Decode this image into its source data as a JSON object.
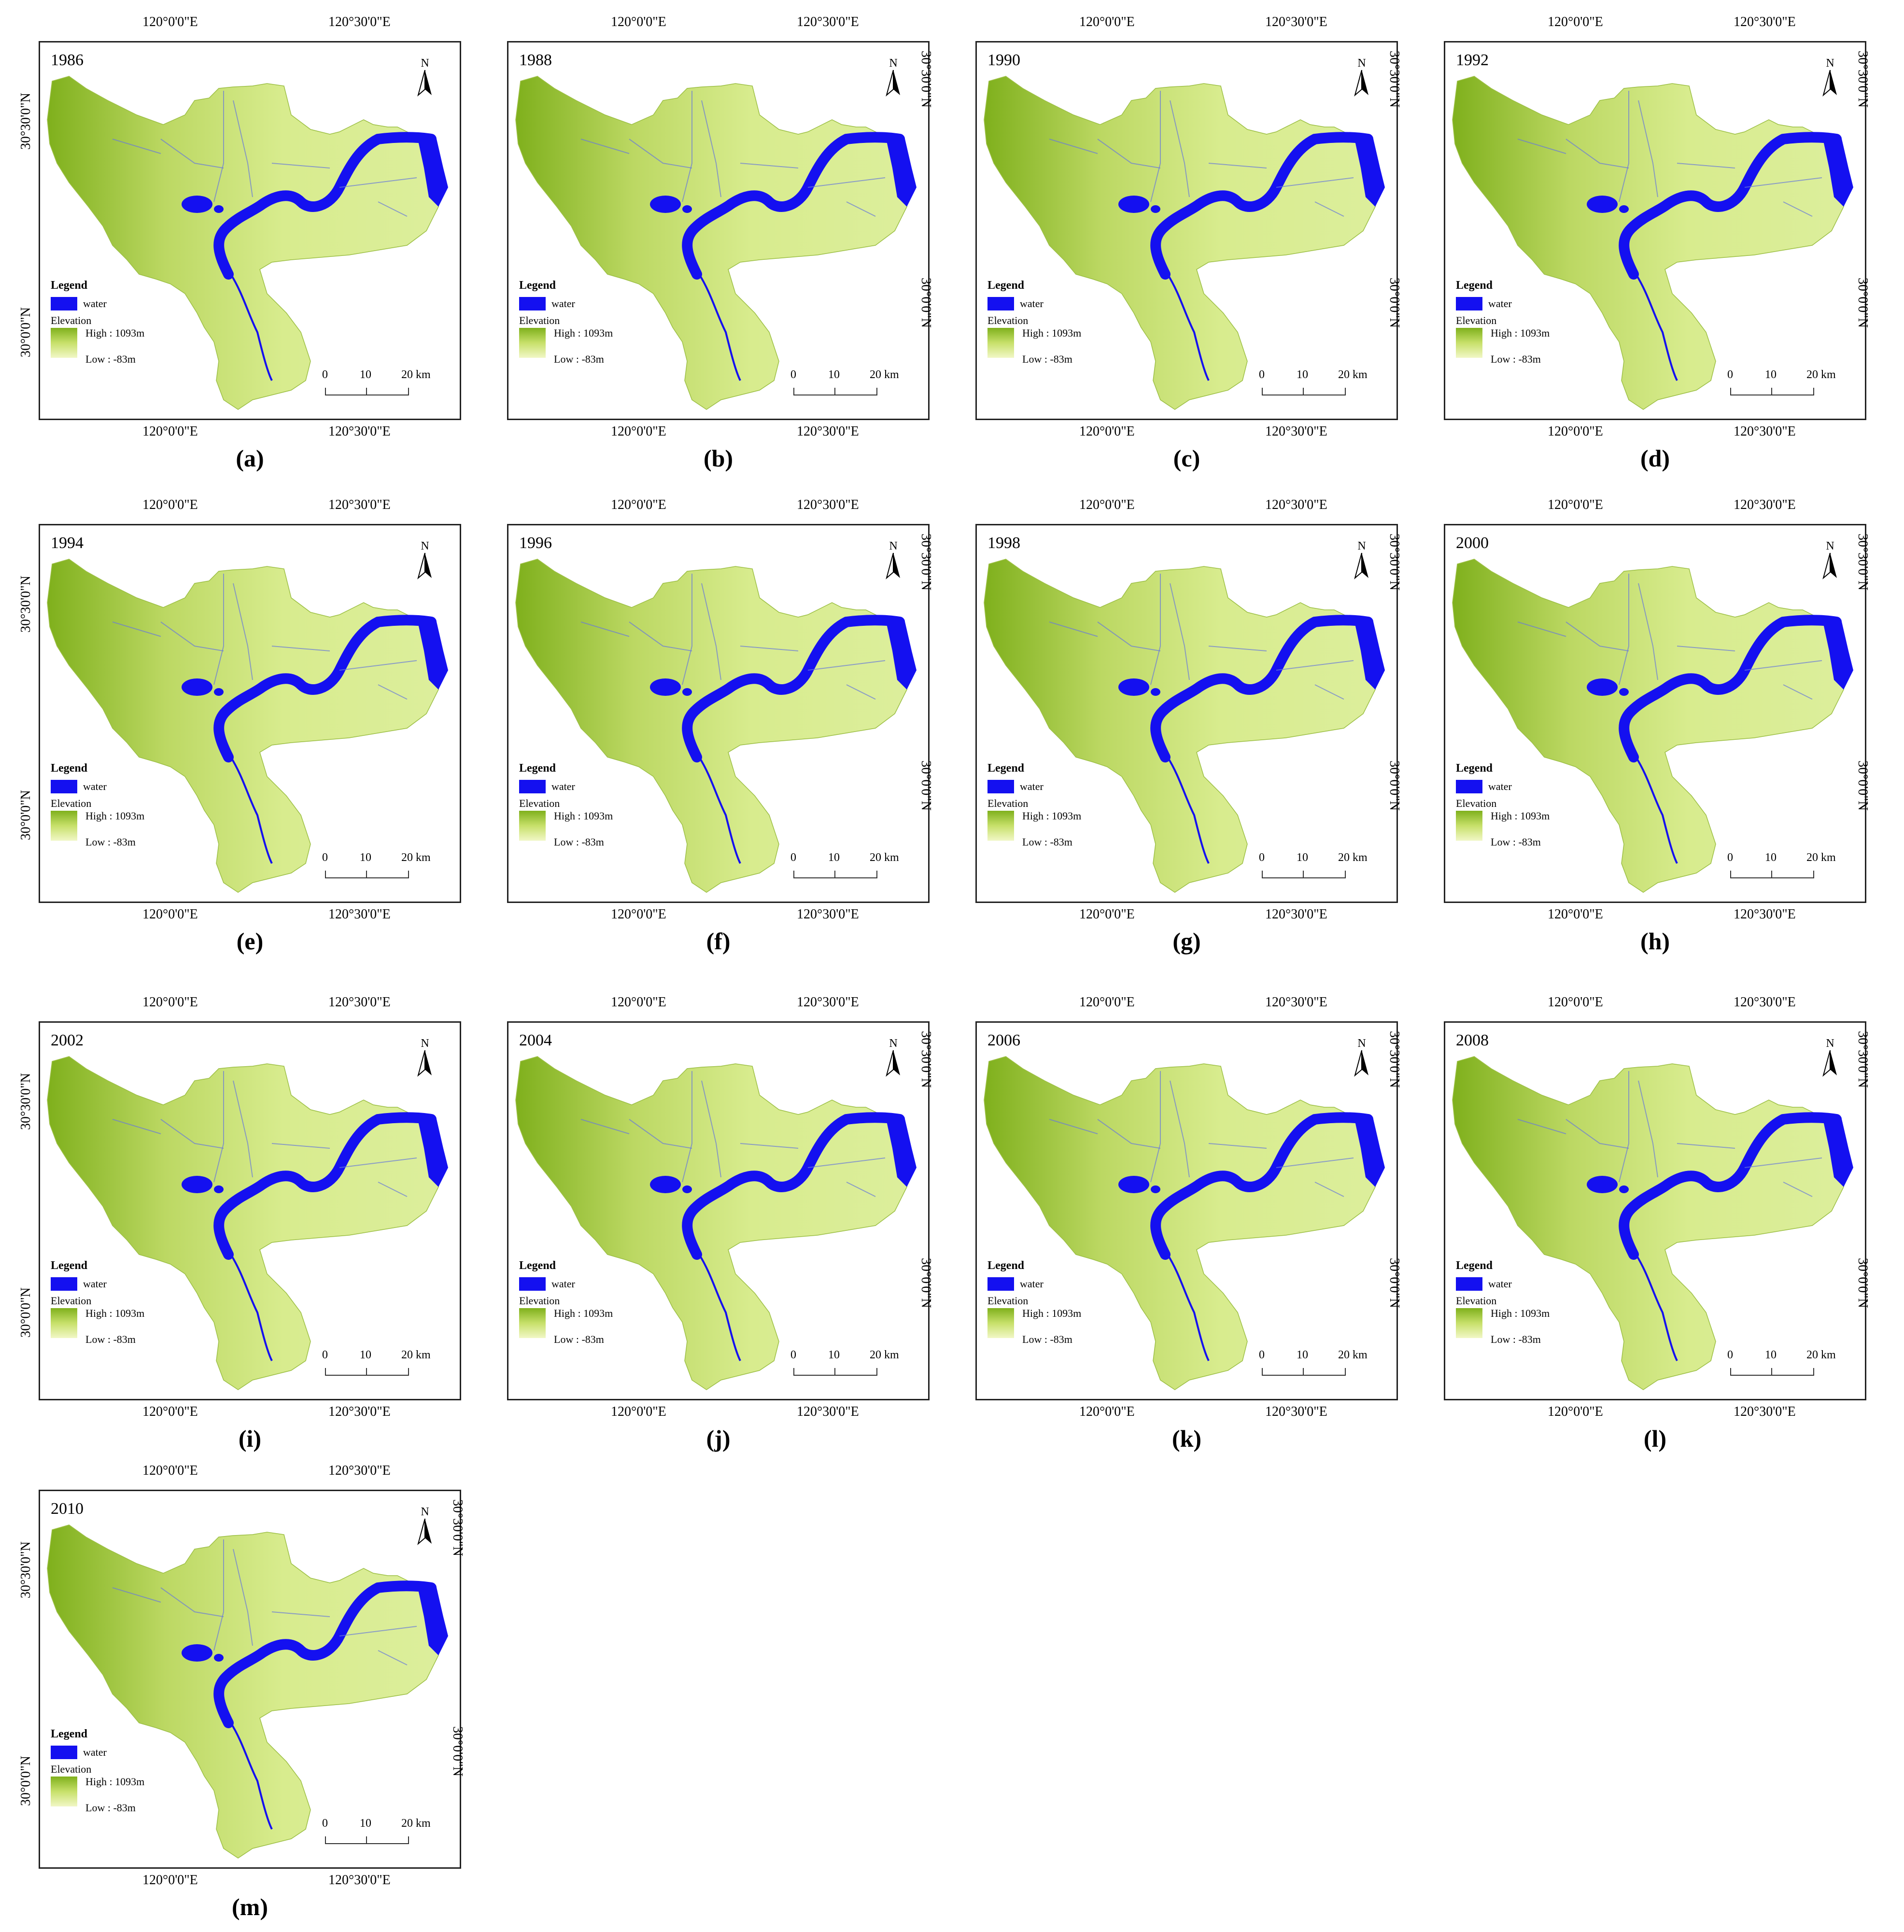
{
  "panels": [
    {
      "year": "1986",
      "label": "(a)",
      "right_coords": false,
      "left_coords": true
    },
    {
      "year": "1988",
      "label": "(b)",
      "right_coords": true,
      "left_coords": false
    },
    {
      "year": "1990",
      "label": "(c)",
      "right_coords": true,
      "left_coords": false
    },
    {
      "year": "1992",
      "label": "(d)",
      "right_coords": true,
      "left_coords": false
    },
    {
      "year": "1994",
      "label": "(e)",
      "right_coords": false,
      "left_coords": true
    },
    {
      "year": "1996",
      "label": "(f)",
      "right_coords": true,
      "left_coords": false
    },
    {
      "year": "1998",
      "label": "(g)",
      "right_coords": true,
      "left_coords": false
    },
    {
      "year": "2000",
      "label": "(h)",
      "right_coords": true,
      "left_coords": false
    },
    {
      "year": "2002",
      "label": "(i)",
      "right_coords": false,
      "left_coords": true
    },
    {
      "year": "2004",
      "label": "(j)",
      "right_coords": true,
      "left_coords": false
    },
    {
      "year": "2006",
      "label": "(k)",
      "right_coords": true,
      "left_coords": false
    },
    {
      "year": "2008",
      "label": "(l)",
      "right_coords": true,
      "left_coords": false
    },
    {
      "year": "2010",
      "label": "(m)",
      "right_coords": true,
      "left_coords": true
    }
  ],
  "coords": {
    "lon_left": "120°0'0\"E",
    "lon_right": "120°30'0\"E",
    "lat_top": "30°30'0\"N",
    "lat_bottom": "30°0'0\"N"
  },
  "north_label": "N",
  "legend": {
    "title": "Legend",
    "water": "water",
    "elevation": "Elevation",
    "high": "High : 1093m",
    "low": "Low : -83m"
  },
  "scale_bar": {
    "t0": "0",
    "t1": "10",
    "t2": "20 km"
  },
  "colors": {
    "water": "#1410f0",
    "high": "#7fb01c",
    "low": "#f1f7c6",
    "land": "#d8ec8e"
  }
}
